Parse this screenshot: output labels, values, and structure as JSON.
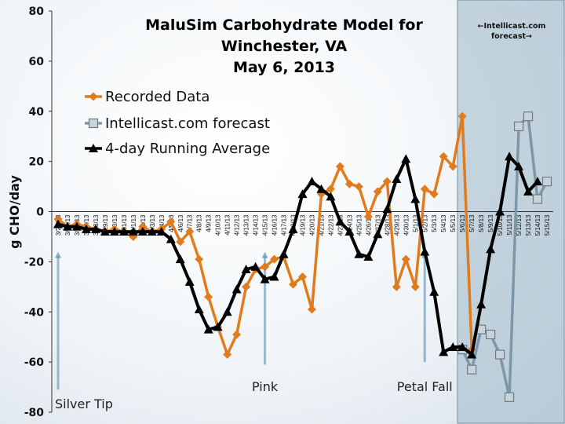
{
  "chart_data": {
    "type": "line",
    "title_lines": [
      "MaluSim Carbohydrate Model for",
      "Winchester, VA",
      "May 6, 2013"
    ],
    "ylabel": "g CHO/day",
    "xlabel": "",
    "ylim": [
      -80,
      80
    ],
    "yticks": [
      80,
      60,
      40,
      20,
      0,
      -20,
      -40,
      -60,
      -80
    ],
    "categories": [
      "3/24/13",
      "3/25/13",
      "3/26/13",
      "3/27/13",
      "3/28/13",
      "3/29/13",
      "3/30/13",
      "3/31/13",
      "4/1/13",
      "4/2/13",
      "4/3/13",
      "4/4/13",
      "4/5/13",
      "4/6/13",
      "4/7/13",
      "4/8/13",
      "4/9/13",
      "4/10/13",
      "4/11/13",
      "4/12/13",
      "4/13/13",
      "4/14/13",
      "4/15/13",
      "4/16/13",
      "4/17/13",
      "4/18/13",
      "4/19/13",
      "4/20/13",
      "4/21/13",
      "4/22/13",
      "4/23/13",
      "4/24/13",
      "4/25/13",
      "4/26/13",
      "4/27/13",
      "4/28/13",
      "4/29/13",
      "4/30/13",
      "5/1/13",
      "5/2/13",
      "5/3/13",
      "5/4/13",
      "5/5/13",
      "5/6/13",
      "5/7/13",
      "5/8/13",
      "5/9/13",
      "5/10/13",
      "5/11/13",
      "5/12/13",
      "5/13/13",
      "5/14/13",
      "5/15/13"
    ],
    "series": [
      {
        "name": "Recorded Data",
        "color": "#E07B1E",
        "marker": "diamond",
        "values": [
          -3,
          -6,
          -5,
          -6,
          -7,
          -8,
          -7,
          -8,
          -10,
          -6,
          -8,
          -7,
          -4,
          -12,
          -8,
          -19,
          -34,
          -46,
          -57,
          -49,
          -30,
          -23,
          -22,
          -19,
          -18,
          -29,
          -26,
          -39,
          7,
          9,
          18,
          11,
          10,
          -2,
          8,
          12,
          -30,
          -19,
          -30,
          9,
          7,
          22,
          18,
          38,
          -55,
          null,
          null,
          null,
          null,
          null,
          null,
          null,
          null
        ]
      },
      {
        "name": "Intellicast.com forecast",
        "color": "#7E97A8",
        "marker": "square",
        "values": [
          null,
          null,
          null,
          null,
          null,
          null,
          null,
          null,
          null,
          null,
          null,
          null,
          null,
          null,
          null,
          null,
          null,
          null,
          null,
          null,
          null,
          null,
          null,
          null,
          null,
          null,
          null,
          null,
          null,
          null,
          null,
          null,
          null,
          null,
          null,
          null,
          null,
          null,
          null,
          null,
          null,
          null,
          null,
          -55,
          -63,
          -47,
          -49,
          -57,
          -74,
          34,
          38,
          5,
          12
        ]
      },
      {
        "name": "4-day Running Average",
        "color": "#000000",
        "marker": "triangle",
        "values": [
          -5,
          -6,
          -6,
          -7,
          -7,
          -8,
          -8,
          -8,
          -8,
          -8,
          -8,
          -8,
          -11,
          -19,
          -28,
          -39,
          -47,
          -46,
          -40,
          -31,
          -23,
          -22,
          -27,
          -26,
          -17,
          -7,
          7,
          12,
          9,
          6,
          -4,
          -8,
          -17,
          -18,
          -9,
          1,
          13,
          21,
          5,
          -16,
          -32,
          -56,
          -54,
          -54,
          -57,
          -37,
          -15,
          0,
          22,
          18,
          8,
          12,
          null
        ]
      }
    ],
    "annotations": [
      {
        "label": "Silver Tip",
        "at_category": "3/24/13"
      },
      {
        "label": "Pink",
        "at_category": "4/15/13"
      },
      {
        "label": "Petal Fall",
        "at_category": "5/2/13"
      }
    ],
    "forecast_note": [
      "←Intellicast.com",
      "forecast→"
    ],
    "legend_placement": "upper-left",
    "grid": false
  }
}
